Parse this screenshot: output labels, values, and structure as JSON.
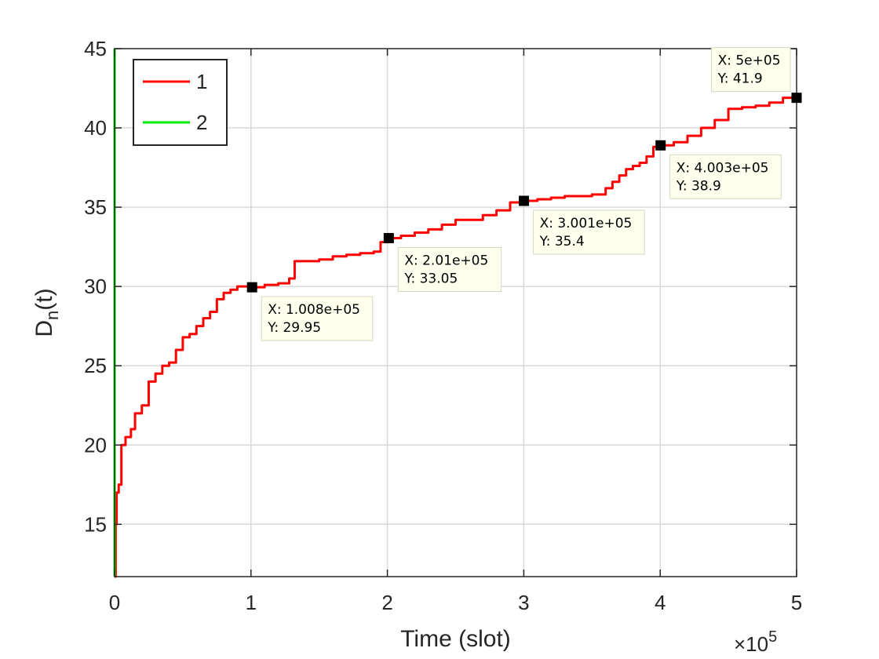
{
  "chart_data": {
    "type": "line",
    "xlabel": "Time (slot)",
    "ylabel": "D",
    "ylabel_subscript": "n",
    "ylabel_suffix": "(t)",
    "x_exponent_label": "×10",
    "x_exponent_power": "5",
    "xlim": [
      0,
      500000
    ],
    "ylim": [
      11.7,
      45
    ],
    "xtick_values": [
      0,
      100000,
      200000,
      300000,
      400000,
      500000
    ],
    "xtick_labels": [
      "0",
      "1",
      "2",
      "3",
      "4",
      "5"
    ],
    "ytick_values": [
      15,
      20,
      25,
      30,
      35,
      40,
      45
    ],
    "ytick_labels": [
      "15",
      "20",
      "25",
      "30",
      "35",
      "40",
      "45"
    ],
    "grid": true,
    "legend_position": "top-left",
    "series": [
      {
        "name": "1",
        "color": "#ff0000",
        "points": [
          [
            0,
            11.7
          ],
          [
            800,
            15
          ],
          [
            1500,
            17
          ],
          [
            3000,
            17.5
          ],
          [
            5000,
            20
          ],
          [
            8000,
            20.5
          ],
          [
            12000,
            21
          ],
          [
            15000,
            22
          ],
          [
            20000,
            22.5
          ],
          [
            25000,
            24
          ],
          [
            30000,
            24.5
          ],
          [
            35000,
            25
          ],
          [
            40000,
            25.2
          ],
          [
            45000,
            26
          ],
          [
            50000,
            26.8
          ],
          [
            55000,
            27
          ],
          [
            60000,
            27.5
          ],
          [
            65000,
            28
          ],
          [
            70000,
            28.4
          ],
          [
            75000,
            29.2
          ],
          [
            80000,
            29.6
          ],
          [
            85000,
            29.8
          ],
          [
            90000,
            30
          ],
          [
            100800,
            29.95
          ],
          [
            110000,
            30.1
          ],
          [
            120000,
            30.2
          ],
          [
            128000,
            30.5
          ],
          [
            132000,
            31.6
          ],
          [
            140000,
            31.6
          ],
          [
            150000,
            31.7
          ],
          [
            160000,
            31.9
          ],
          [
            170000,
            32
          ],
          [
            180000,
            32.1
          ],
          [
            190000,
            32.2
          ],
          [
            195000,
            32.8
          ],
          [
            201000,
            33.05
          ],
          [
            210000,
            33.2
          ],
          [
            220000,
            33.4
          ],
          [
            230000,
            33.6
          ],
          [
            240000,
            33.9
          ],
          [
            250000,
            34.2
          ],
          [
            260000,
            34.2
          ],
          [
            270000,
            34.5
          ],
          [
            280000,
            34.8
          ],
          [
            290000,
            35.3
          ],
          [
            300100,
            35.4
          ],
          [
            310000,
            35.5
          ],
          [
            320000,
            35.6
          ],
          [
            330000,
            35.7
          ],
          [
            340000,
            35.7
          ],
          [
            350000,
            35.8
          ],
          [
            360000,
            36.2
          ],
          [
            365000,
            36.6
          ],
          [
            370000,
            37
          ],
          [
            375000,
            37.4
          ],
          [
            380000,
            37.6
          ],
          [
            385000,
            37.8
          ],
          [
            390000,
            38.2
          ],
          [
            395000,
            38.8
          ],
          [
            400300,
            38.9
          ],
          [
            410000,
            39.1
          ],
          [
            420000,
            39.5
          ],
          [
            430000,
            40
          ],
          [
            440000,
            40.5
          ],
          [
            450000,
            41.2
          ],
          [
            460000,
            41.3
          ],
          [
            470000,
            41.4
          ],
          [
            480000,
            41.6
          ],
          [
            490000,
            41.9
          ],
          [
            500000,
            41.9
          ]
        ]
      },
      {
        "name": "2",
        "color": "#00ee00",
        "points": [
          [
            0,
            11.7
          ],
          [
            0,
            45
          ]
        ]
      }
    ],
    "datatips": [
      {
        "x": 100800,
        "y": 29.95,
        "line1": "X: 1.008e+05",
        "line2": "Y: 29.95",
        "placement": "below-right"
      },
      {
        "x": 201000,
        "y": 33.05,
        "line1": "X: 2.01e+05",
        "line2": "Y: 33.05",
        "placement": "below-right"
      },
      {
        "x": 300100,
        "y": 35.4,
        "line1": "X: 3.001e+05",
        "line2": "Y: 35.4",
        "placement": "below-right"
      },
      {
        "x": 400300,
        "y": 38.9,
        "line1": "X: 4.003e+05",
        "line2": "Y: 38.9",
        "placement": "below-right"
      },
      {
        "x": 500000,
        "y": 41.9,
        "line1": "X: 5e+05",
        "line2": "Y: 41.9",
        "placement": "above-left"
      }
    ]
  }
}
